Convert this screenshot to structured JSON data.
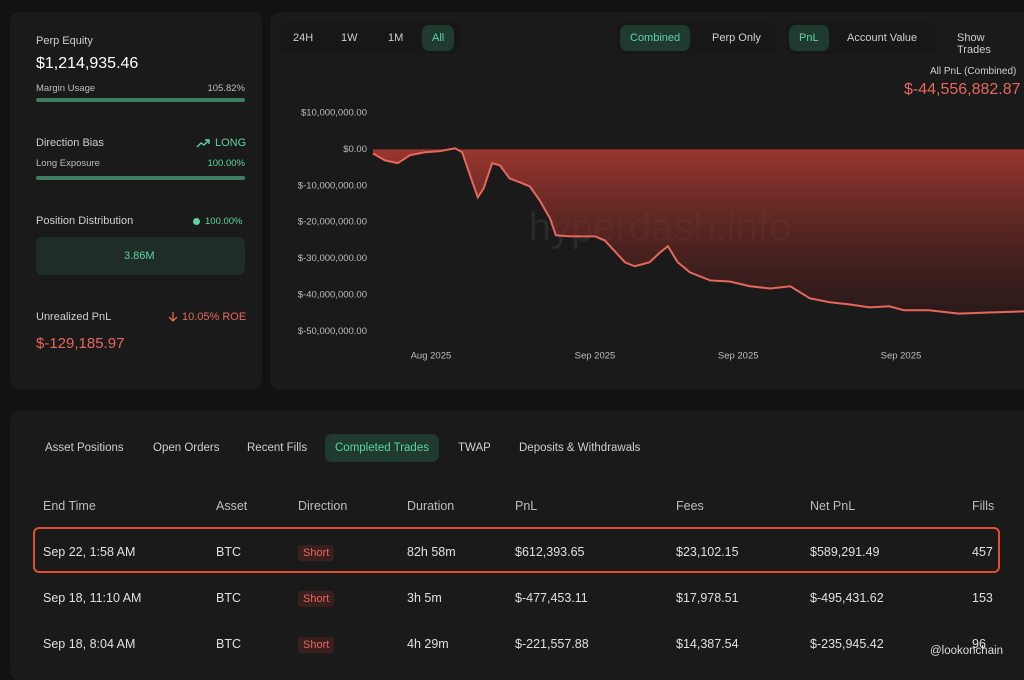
{
  "sidebar": {
    "perp_equity": {
      "label": "Perp Equity",
      "value": "$1,214,935.46"
    },
    "margin_usage": {
      "label": "Margin Usage",
      "value": "105.82%"
    },
    "direction_bias": {
      "label": "Direction Bias",
      "value": "LONG"
    },
    "long_exposure": {
      "label": "Long Exposure",
      "value": "100.00%"
    },
    "position_distribution": {
      "label": "Position Distribution",
      "value": "100.00%",
      "bar": "3.86M"
    },
    "unrealized_pnl": {
      "label": "Unrealized PnL",
      "roe": "10.05% ROE",
      "value": "$-129,185.97"
    }
  },
  "time_ranges": [
    "24H",
    "1W",
    "1M",
    "All"
  ],
  "view_toggles": [
    "Combined",
    "Perp Only"
  ],
  "metric_toggles": [
    "PnL",
    "Account Value"
  ],
  "show_trades": "Show Trades",
  "chart_data": {
    "type": "area",
    "title": "All PnL (Combined)",
    "total": "$-44,556,882.87",
    "watermark": "hyperdash.info",
    "color": "#e8675c",
    "grid": false,
    "x": [
      0,
      1.8,
      3.8,
      5.7,
      8.0,
      10.3,
      12.6,
      13.7,
      14.9,
      16.1,
      17.0,
      18.3,
      19.5,
      21.0,
      22.6,
      24.1,
      25.6,
      27.2,
      28.1,
      30.3,
      34.1,
      35.6,
      38.7,
      40.2,
      42.5,
      44.1,
      45.3,
      46.8,
      48.7,
      51.8,
      54.8,
      57.9,
      61.0,
      64.1,
      67.1,
      70.2,
      73.3,
      76.3,
      79.3,
      81.6,
      85.4,
      90.0,
      94.6,
      100
    ],
    "values": [
      -1100000,
      -3000000,
      -3800000,
      -1600000,
      -800000,
      -500000,
      300000,
      -800000,
      -7100000,
      -13200000,
      -10700000,
      -3800000,
      -4400000,
      -8000000,
      -9100000,
      -10200000,
      -14000000,
      -19000000,
      -23600000,
      -23900000,
      -23900000,
      -25000000,
      -31000000,
      -32100000,
      -31000000,
      -28300000,
      -26600000,
      -31000000,
      -33800000,
      -36000000,
      -36300000,
      -37600000,
      -38200000,
      -37600000,
      -40900000,
      -42000000,
      -42600000,
      -43400000,
      -43100000,
      -44200000,
      -44200000,
      -45100000,
      -44800000,
      -44500000
    ],
    "xlim": [
      0,
      100
    ],
    "xticks": [
      {
        "value": 8.9,
        "label": "Aug 2025"
      },
      {
        "value": 34.1,
        "label": "Sep 2025"
      },
      {
        "value": 56.1,
        "label": "Sep 2025"
      },
      {
        "value": 81.1,
        "label": "Sep 2025"
      }
    ],
    "ylim": [
      -54000000,
      13000000
    ],
    "yticks": [
      {
        "value": 10000000,
        "label": "$10,000,000.00"
      },
      {
        "value": 0,
        "label": "$0.00"
      },
      {
        "value": -10000000,
        "label": "$-10,000,000.00"
      },
      {
        "value": -20000000,
        "label": "$-20,000,000.00"
      },
      {
        "value": -30000000,
        "label": "$-30,000,000.00"
      },
      {
        "value": -40000000,
        "label": "$-40,000,000.00"
      },
      {
        "value": -50000000,
        "label": "$-50,000,000.00"
      }
    ]
  },
  "tabs": [
    "Asset Positions",
    "Open Orders",
    "Recent Fills",
    "Completed Trades",
    "TWAP",
    "Deposits & Withdrawals"
  ],
  "table": {
    "headers": [
      "End Time",
      "Asset",
      "Direction",
      "Duration",
      "PnL",
      "Fees",
      "Net PnL",
      "Fills"
    ],
    "rows": [
      [
        "Sep 22, 1:58 AM",
        "BTC",
        "Short",
        "82h 58m",
        "$612,393.65",
        "$23,102.15",
        "$589,291.49",
        "457"
      ],
      [
        "Sep 18, 11:10 AM",
        "BTC",
        "Short",
        "3h 5m",
        "$-477,453.11",
        "$17,978.51",
        "$-495,431.62",
        "153"
      ],
      [
        "Sep 18, 8:04 AM",
        "BTC",
        "Short",
        "4h 29m",
        "$-221,557.88",
        "$14,387.54",
        "$-235,945.42",
        "96"
      ]
    ]
  },
  "watermark": "@lookonchain"
}
